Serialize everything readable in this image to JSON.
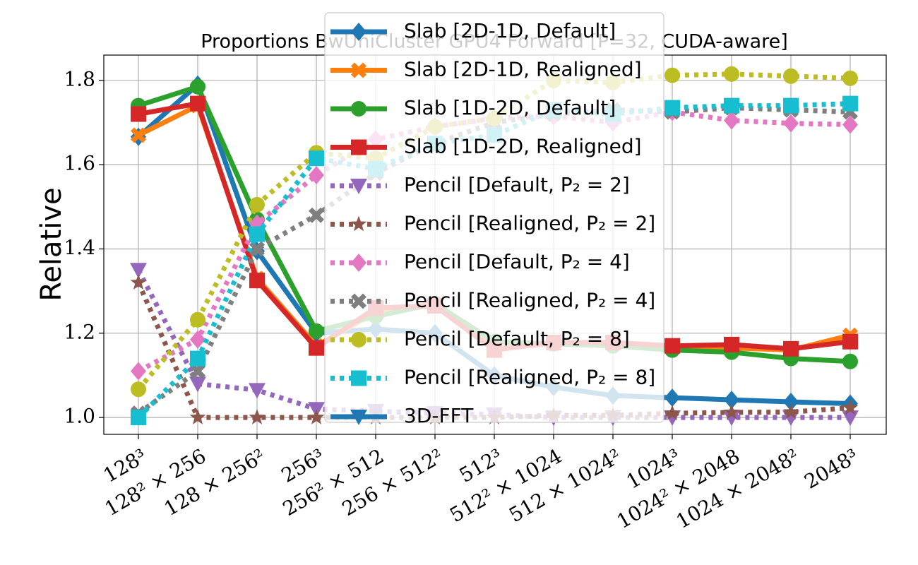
{
  "chart_data": {
    "type": "line",
    "title": "Proportions BwUniCluster GPU4 Forward [P=32, CUDA-aware]",
    "ylabel": "Relative",
    "categories": [
      "128³",
      "128² × 256",
      "128 × 256²",
      "256³",
      "256² × 512",
      "256 × 512²",
      "512³",
      "512² × 1024",
      "512 × 1024²",
      "1024³",
      "1024² × 2048",
      "1024 × 2048²",
      "2048³"
    ],
    "ylim": [
      0.96,
      1.86
    ],
    "yticks": [
      {
        "value": 1,
        "label": "1.0"
      },
      1.2,
      1.4,
      1.6,
      1.8
    ],
    "grid": true,
    "legend": "upper center",
    "series": [
      {
        "name": "Slab [2D-1D, Default]",
        "color": "#1f77b4",
        "marker": "diamond",
        "dash": "solid",
        "values": [
          1.666,
          1.79,
          1.395,
          1.2,
          1.21,
          1.2,
          1.1,
          1.072,
          1.052,
          1.047,
          1.042,
          1.037,
          1.033
        ]
      },
      {
        "name": "Slab [2D-1D, Realigned]",
        "color": "#ff7f0e",
        "marker": "x",
        "dash": "solid",
        "values": [
          1.67,
          1.74,
          1.33,
          1.17,
          1.25,
          1.27,
          1.165,
          1.175,
          1.175,
          1.165,
          1.165,
          1.16,
          1.195
        ]
      },
      {
        "name": "Slab [1D-2D, Default]",
        "color": "#2ca02c",
        "marker": "circle",
        "dash": "solid",
        "values": [
          1.74,
          1.785,
          1.47,
          1.205,
          1.24,
          1.27,
          1.18,
          1.175,
          1.17,
          1.16,
          1.155,
          1.14,
          1.133
        ]
      },
      {
        "name": "Slab [1D-2D, Realigned]",
        "color": "#d62728",
        "marker": "square",
        "dash": "solid",
        "values": [
          1.72,
          1.745,
          1.325,
          1.165,
          1.26,
          1.265,
          1.16,
          1.178,
          1.178,
          1.17,
          1.173,
          1.163,
          1.18
        ]
      },
      {
        "name": "Pencil [Default, P₂ = 2]",
        "color": "#9467bd",
        "marker": "triangle-down",
        "dash": "dotted",
        "values": [
          1.35,
          1.08,
          1.065,
          1.02,
          1.015,
          1.01,
          1.007,
          1.0,
          1.0,
          1.0,
          1.0,
          1.0,
          1.0
        ]
      },
      {
        "name": "Pencil [Realigned, P₂ = 2]",
        "color": "#8c564b",
        "marker": "star",
        "dash": "dotted",
        "values": [
          1.32,
          1.0,
          1.0,
          1.0,
          1.0,
          1.0,
          1.0,
          1.005,
          1.005,
          1.01,
          1.012,
          1.013,
          1.023
        ]
      },
      {
        "name": "Pencil [Default, P₂ = 4]",
        "color": "#e377c2",
        "marker": "diamond",
        "dash": "dotted",
        "values": [
          1.11,
          1.185,
          1.46,
          1.575,
          1.66,
          1.69,
          1.71,
          1.715,
          1.7,
          1.725,
          1.705,
          1.698,
          1.695
        ]
      },
      {
        "name": "Pencil [Realigned, P₂ = 4]",
        "color": "#7f7f7f",
        "marker": "x",
        "dash": "dotted",
        "values": [
          1.01,
          1.11,
          1.4,
          1.48,
          1.58,
          1.65,
          1.7,
          1.72,
          1.73,
          1.725,
          1.735,
          1.73,
          1.725
        ]
      },
      {
        "name": "Pencil [Default, P₂ = 8]",
        "color": "#bcbd22",
        "marker": "circle",
        "dash": "dotted",
        "values": [
          1.067,
          1.232,
          1.505,
          1.628,
          1.615,
          1.69,
          1.71,
          1.8,
          1.795,
          1.812,
          1.815,
          1.81,
          1.805
        ]
      },
      {
        "name": "Pencil [Realigned, P₂ = 8]",
        "color": "#17becf",
        "marker": "square",
        "dash": "dotted",
        "values": [
          1.0,
          1.14,
          1.435,
          1.615,
          1.59,
          1.65,
          1.67,
          1.73,
          1.72,
          1.735,
          1.74,
          1.74,
          1.745
        ]
      },
      {
        "name": "3D-FFT",
        "color": "#1f77b4",
        "marker": "triangle-down",
        "dash": "solid",
        "values": [
          null,
          null,
          null,
          null,
          null,
          null,
          null,
          null,
          null,
          null,
          null,
          null,
          null
        ]
      }
    ]
  }
}
